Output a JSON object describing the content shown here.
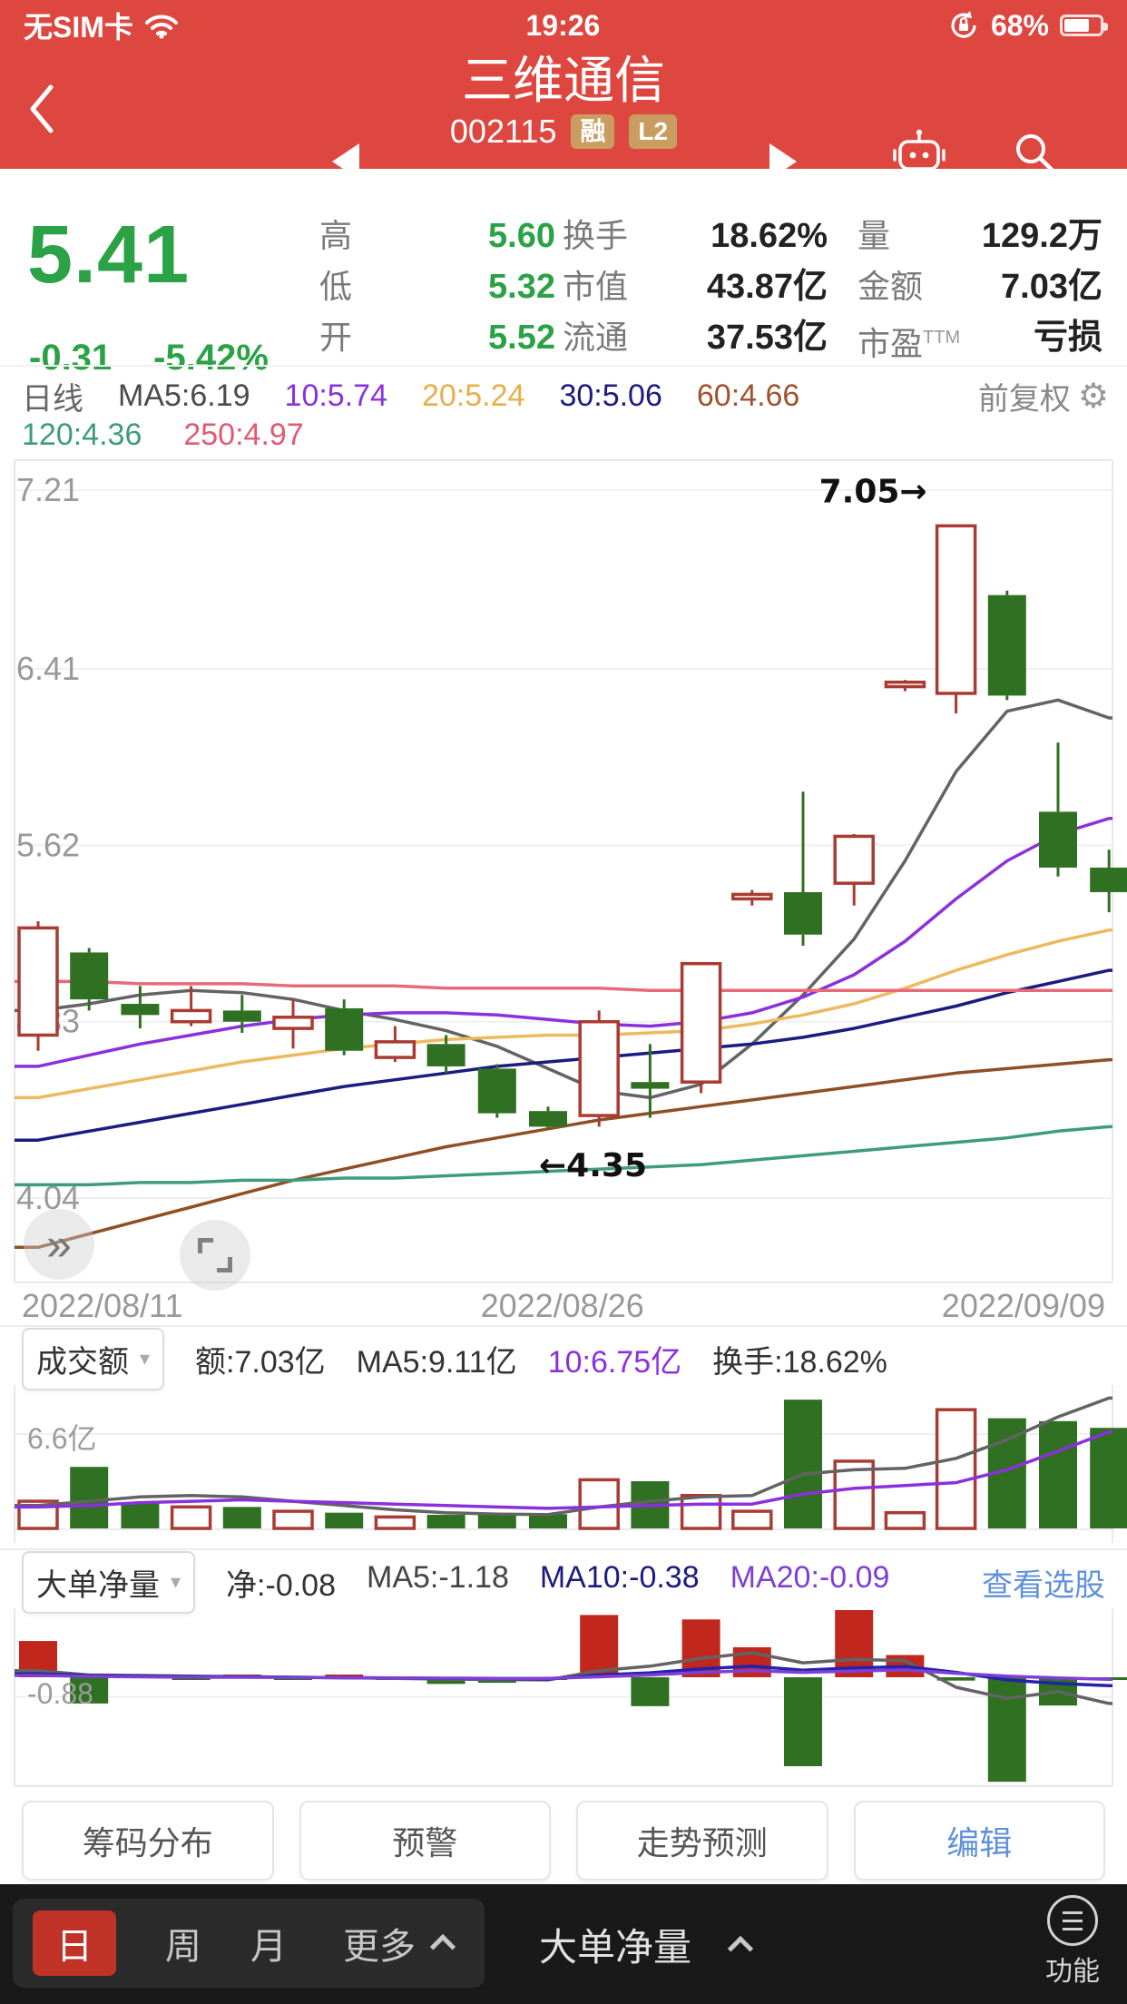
{
  "status_bar": {
    "carrier": "无SIM卡",
    "time": "19:26",
    "battery_pct": "68%"
  },
  "header": {
    "title": "三维通信",
    "code": "002115",
    "badge_margin": "融",
    "badge_level": "L2"
  },
  "quote": {
    "price": "5.41",
    "change": "-0.31",
    "change_pct": "-5.42%",
    "columns": [
      {
        "value_color": "#2BA245",
        "items": [
          {
            "label": "高",
            "value": "5.60"
          },
          {
            "label": "低",
            "value": "5.32"
          },
          {
            "label": "开",
            "value": "5.52"
          }
        ]
      },
      {
        "value_color": "#222222",
        "items": [
          {
            "label": "换手",
            "value": "18.62%"
          },
          {
            "label": "市值",
            "value": "43.87亿"
          },
          {
            "label": "流通",
            "value": "37.53亿"
          }
        ]
      },
      {
        "value_color": "#222222",
        "items": [
          {
            "label": "量",
            "value": "129.2万"
          },
          {
            "label": "金额",
            "value": "7.03亿"
          },
          {
            "label": "市盈",
            "sup": "TTM",
            "value": "亏损"
          }
        ]
      }
    ]
  },
  "legend": {
    "period": "日线",
    "adjust": "前复权",
    "row1": [
      {
        "text": "MA5:6.19",
        "color": "#4A4A4A"
      },
      {
        "text": "10:5.74",
        "color": "#8C30DD"
      },
      {
        "text": "20:5.24",
        "color": "#E8AE4C"
      },
      {
        "text": "30:5.06",
        "color": "#1B1B80"
      },
      {
        "text": "60:4.66",
        "color": "#A0522D"
      }
    ],
    "row2": [
      {
        "text": "120:4.36",
        "color": "#3E9B7E"
      },
      {
        "text": "250:4.97",
        "color": "#E05A72"
      }
    ]
  },
  "ui": {
    "caret": "▾",
    "gear": "⚙",
    "expand": "»"
  },
  "panels": {
    "volume": {
      "name": "成交额",
      "axis_label": "6.6亿",
      "items": [
        {
          "text": "额:7.03亿",
          "color": "#333333"
        },
        {
          "text": "MA5:9.11亿",
          "color": "#333333"
        },
        {
          "text": "10:6.75亿",
          "color": "#8C30DD"
        },
        {
          "text": "换手:18.62%",
          "color": "#333333"
        }
      ]
    },
    "dadan": {
      "name": "大单净量",
      "axis_label": "-0.88",
      "link": "查看选股",
      "items": [
        {
          "text": "净:-0.08",
          "color": "#333333"
        },
        {
          "text": "MA5:-1.18",
          "color": "#444444"
        },
        {
          "text": "MA10:-0.38",
          "color": "#1B1B80"
        },
        {
          "text": "MA20:-0.09",
          "color": "#7F3FD4"
        }
      ]
    }
  },
  "buttons": [
    "筹码分布",
    "预警",
    "走势预测",
    "编辑"
  ],
  "bottom_nav": {
    "periods": [
      "日",
      "周",
      "月",
      "更多"
    ],
    "active_period": "日",
    "indicator": "大单净量",
    "more_label": "功能"
  },
  "chart_data": [
    {
      "type": "candlestick",
      "title": "日线 前复权",
      "y_ticks": [
        7.21,
        6.41,
        5.62,
        4.83,
        4.04
      ],
      "ylim": [
        4.04,
        7.21
      ],
      "x_labels": [
        "2022/08/11",
        "2022/08/26",
        "2022/09/09"
      ],
      "up_color": "#A93B32",
      "down_color": "#2F7022",
      "annotations": [
        {
          "text": "7.05→",
          "index": 18,
          "price": 7.05,
          "side": "left"
        },
        {
          "text": "←4.35",
          "index": 10,
          "price": 4.35,
          "side": "right"
        }
      ],
      "candles": [
        [
          4.77,
          5.28,
          4.7,
          5.25
        ],
        [
          5.14,
          5.16,
          4.88,
          4.93
        ],
        [
          4.91,
          4.99,
          4.8,
          4.86
        ],
        [
          4.83,
          4.99,
          4.81,
          4.88
        ],
        [
          4.88,
          4.95,
          4.78,
          4.83
        ],
        [
          4.8,
          4.93,
          4.71,
          4.85
        ],
        [
          4.89,
          4.93,
          4.68,
          4.7
        ],
        [
          4.67,
          4.81,
          4.65,
          4.74
        ],
        [
          4.73,
          4.77,
          4.6,
          4.63
        ],
        [
          4.62,
          4.64,
          4.4,
          4.42
        ],
        [
          4.43,
          4.45,
          4.35,
          4.36
        ],
        [
          4.41,
          4.88,
          4.36,
          4.83
        ],
        [
          4.56,
          4.73,
          4.4,
          4.53
        ],
        [
          4.56,
          5.09,
          4.51,
          5.09
        ],
        [
          5.38,
          5.42,
          5.35,
          5.4
        ],
        [
          5.41,
          5.86,
          5.17,
          5.22
        ],
        [
          5.45,
          5.67,
          5.35,
          5.66
        ],
        [
          6.33,
          6.36,
          6.31,
          6.35
        ],
        [
          6.3,
          7.05,
          6.21,
          7.05
        ],
        [
          6.74,
          6.76,
          6.27,
          6.29
        ],
        [
          5.77,
          6.08,
          5.48,
          5.52
        ],
        [
          5.52,
          5.6,
          5.32,
          5.41
        ]
      ],
      "ma_lines": [
        {
          "name": "MA5",
          "color": "#636363",
          "values": [
            4.88,
            4.91,
            4.95,
            4.97,
            4.96,
            4.93,
            4.88,
            4.84,
            4.79,
            4.72,
            4.62,
            4.52,
            4.49,
            4.55,
            4.73,
            4.95,
            5.2,
            5.55,
            5.95,
            6.22,
            6.27,
            6.19
          ]
        },
        {
          "name": "MA10",
          "color": "#8C30DD",
          "values": [
            4.63,
            4.68,
            4.73,
            4.77,
            4.81,
            4.84,
            4.86,
            4.87,
            4.87,
            4.86,
            4.84,
            4.82,
            4.81,
            4.83,
            4.87,
            4.94,
            5.04,
            5.19,
            5.38,
            5.55,
            5.67,
            5.74
          ]
        },
        {
          "name": "MA20",
          "color": "#EDB95E",
          "values": [
            4.49,
            4.53,
            4.57,
            4.61,
            4.65,
            4.68,
            4.71,
            4.73,
            4.75,
            4.76,
            4.77,
            4.77,
            4.78,
            4.79,
            4.82,
            4.86,
            4.91,
            4.98,
            5.06,
            5.13,
            5.19,
            5.24
          ]
        },
        {
          "name": "MA30",
          "color": "#1B1B80",
          "values": [
            4.3,
            4.34,
            4.38,
            4.42,
            4.46,
            4.5,
            4.54,
            4.57,
            4.6,
            4.63,
            4.65,
            4.67,
            4.69,
            4.71,
            4.73,
            4.76,
            4.8,
            4.85,
            4.9,
            4.96,
            5.01,
            5.06
          ]
        },
        {
          "name": "MA60",
          "color": "#8F4F25",
          "values": [
            3.82,
            3.88,
            3.94,
            4.0,
            4.06,
            4.12,
            4.17,
            4.22,
            4.27,
            4.31,
            4.35,
            4.39,
            4.42,
            4.45,
            4.48,
            4.51,
            4.54,
            4.57,
            4.6,
            4.62,
            4.64,
            4.66
          ]
        },
        {
          "name": "MA120",
          "color": "#3E9B7E",
          "values": [
            4.1,
            4.1,
            4.11,
            4.11,
            4.12,
            4.12,
            4.13,
            4.13,
            4.14,
            4.15,
            4.16,
            4.17,
            4.18,
            4.19,
            4.21,
            4.23,
            4.25,
            4.27,
            4.29,
            4.31,
            4.34,
            4.36
          ]
        },
        {
          "name": "MA250",
          "color": "#E86A78",
          "values": [
            5.01,
            5.01,
            5.0,
            5.0,
            5.0,
            4.99,
            4.99,
            4.99,
            4.98,
            4.98,
            4.98,
            4.98,
            4.97,
            4.97,
            4.97,
            4.97,
            4.97,
            4.97,
            4.97,
            4.97,
            4.97,
            4.97
          ]
        }
      ]
    },
    {
      "type": "bar",
      "title": "成交额(亿)",
      "grid_value": 6.6,
      "grid_label": "6.6亿",
      "values": [
        1.9,
        4.3,
        1.75,
        1.5,
        1.5,
        1.2,
        1.1,
        0.8,
        0.95,
        1.0,
        1.0,
        3.4,
        3.3,
        2.3,
        1.2,
        9.0,
        4.7,
        1.1,
        8.3,
        7.7,
        7.5,
        7.03
      ],
      "ma5": [
        1.6,
        1.9,
        2.2,
        2.3,
        2.2,
        1.9,
        1.6,
        1.3,
        1.1,
        1.0,
        0.97,
        1.5,
        1.9,
        2.2,
        2.3,
        3.8,
        4.1,
        4.2,
        4.9,
        6.2,
        7.8,
        9.11
      ],
      "ma10": [
        1.5,
        1.6,
        1.8,
        1.9,
        2.0,
        1.9,
        1.8,
        1.7,
        1.6,
        1.5,
        1.4,
        1.5,
        1.6,
        1.7,
        1.7,
        2.4,
        2.8,
        3.0,
        3.2,
        4.1,
        5.4,
        6.75
      ],
      "ma5_color": "#636363",
      "ma10_color": "#8C30DD"
    },
    {
      "type": "bar",
      "title": "大单净量",
      "grid_value": -0.88,
      "grid_label": "-0.88",
      "pos_color": "#C1271D",
      "neg_color": "#2F7022",
      "values": [
        1.63,
        -1.18,
        0.03,
        -0.03,
        0.02,
        -0.02,
        0.02,
        -0.02,
        -0.3,
        -0.25,
        -0.05,
        2.8,
        -1.3,
        2.6,
        1.35,
        -4.0,
        3.2,
        1.0,
        -0.15,
        -4.7,
        -1.27,
        -0.08
      ],
      "ma5": [
        0.3,
        0.1,
        0.08,
        0.05,
        0.03,
        0.0,
        -0.02,
        -0.05,
        -0.08,
        -0.1,
        -0.12,
        0.3,
        0.5,
        0.85,
        1.1,
        0.65,
        0.8,
        0.75,
        -0.45,
        -0.95,
        -0.65,
        -1.18
      ],
      "ma10": [
        0.15,
        0.08,
        0.05,
        0.03,
        0.02,
        0.0,
        -0.02,
        -0.03,
        -0.05,
        -0.06,
        -0.08,
        0.1,
        0.2,
        0.38,
        0.5,
        0.32,
        0.42,
        0.48,
        0.22,
        -0.12,
        -0.28,
        -0.38
      ],
      "ma20": [
        0.08,
        0.04,
        0.02,
        0.0,
        0.0,
        -0.01,
        -0.02,
        -0.03,
        -0.04,
        -0.05,
        -0.05,
        0.02,
        0.1,
        0.22,
        0.3,
        0.22,
        0.28,
        0.33,
        0.18,
        0.05,
        -0.03,
        -0.09
      ],
      "ma5_color": "#636363",
      "ma10_color": "#2222AA",
      "ma20_color": "#7F3FD4"
    }
  ]
}
